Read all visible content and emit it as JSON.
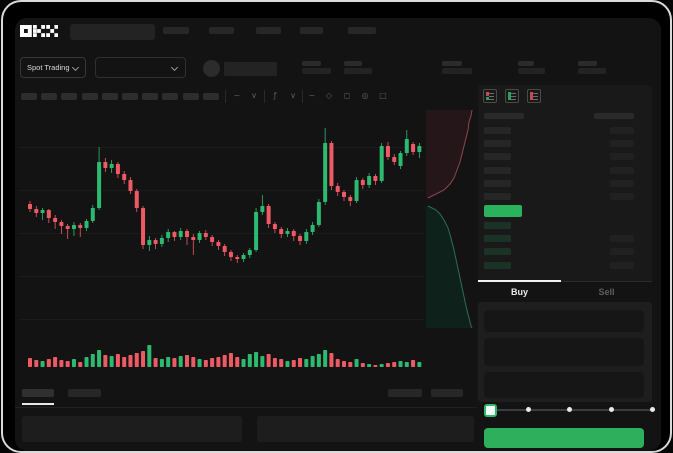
{
  "brand": {
    "logo": "OKX"
  },
  "header": {
    "nav_skeleton_count": 5
  },
  "trade_controls": {
    "market_type": "Spot Trading",
    "stat_skeleton_count": 5
  },
  "chart_toolbar": {
    "skeleton_button_count": 10,
    "icons": [
      {
        "name": "interval-icon",
        "glyph": "~"
      },
      {
        "name": "chevron-down-icon",
        "glyph": "∨"
      },
      {
        "name": "indicators-icon",
        "glyph": "ƒ"
      },
      {
        "name": "chevron-down-icon",
        "glyph": "∨"
      },
      {
        "name": "line-style-icon",
        "glyph": "~"
      },
      {
        "name": "compare-icon",
        "glyph": "◇"
      },
      {
        "name": "screenshot-icon",
        "glyph": "◻"
      },
      {
        "name": "settings-icon",
        "glyph": "◎"
      },
      {
        "name": "fullscreen-icon",
        "glyph": "□"
      }
    ]
  },
  "order_book": {
    "layout_toggles": [
      "book-both-icon",
      "book-bids-icon",
      "book-asks-icon"
    ],
    "ask_row_count": 6,
    "bid_row_count": 4,
    "last_price_highlight": true
  },
  "order_panel": {
    "tabs": [
      {
        "label": "Buy",
        "active": true
      },
      {
        "label": "Sell",
        "active": false
      }
    ],
    "field_count": 3,
    "slider_stop_count": 5,
    "slider_value_index": 0
  },
  "colors": {
    "up": "#2eb970",
    "down": "#ee5a64",
    "last_price_block": "#2ab35c",
    "buy_button": "#2eaf5b",
    "slider_accent": "#2fb671",
    "depth_ask_fill": "#251619",
    "depth_ask_line": "#8f454d",
    "depth_bid_fill": "#0e211a",
    "depth_bid_line": "#2d6e55"
  },
  "chart_data": {
    "type": "candlestick",
    "title": "",
    "xlabel": "",
    "ylabel": "",
    "axis_labels_visible": false,
    "price_units": "relative",
    "candles": [
      [
        66,
        61,
        69,
        58
      ],
      [
        61,
        57,
        64,
        53
      ],
      [
        57,
        60,
        62,
        50
      ],
      [
        60,
        52,
        61,
        47
      ],
      [
        52,
        48,
        55,
        41
      ],
      [
        48,
        44,
        50,
        36
      ],
      [
        44,
        41,
        46,
        31
      ],
      [
        41,
        45,
        48,
        34
      ],
      [
        45,
        42,
        47,
        33
      ],
      [
        42,
        49,
        51,
        39
      ],
      [
        49,
        62,
        65,
        47
      ],
      [
        62,
        108,
        123,
        60
      ],
      [
        108,
        102,
        112,
        98
      ],
      [
        102,
        106,
        110,
        97
      ],
      [
        106,
        96,
        108,
        92
      ],
      [
        96,
        90,
        99,
        86
      ],
      [
        90,
        79,
        93,
        76
      ],
      [
        79,
        62,
        81,
        58
      ],
      [
        62,
        25,
        64,
        21
      ],
      [
        25,
        30,
        34,
        19
      ],
      [
        30,
        26,
        32,
        21
      ],
      [
        26,
        32,
        35,
        23
      ],
      [
        32,
        38,
        41,
        28
      ],
      [
        38,
        33,
        39,
        29
      ],
      [
        33,
        39,
        42,
        30
      ],
      [
        39,
        33,
        41,
        25
      ],
      [
        33,
        30,
        36,
        15
      ],
      [
        30,
        37,
        39,
        27
      ],
      [
        37,
        33,
        40,
        30
      ],
      [
        33,
        28,
        35,
        24
      ],
      [
        28,
        24,
        30,
        20
      ],
      [
        24,
        18,
        26,
        14
      ],
      [
        18,
        13,
        20,
        9
      ],
      [
        13,
        11,
        15,
        7
      ],
      [
        11,
        15,
        17,
        8
      ],
      [
        15,
        20,
        22,
        12
      ],
      [
        20,
        58,
        62,
        18
      ],
      [
        58,
        64,
        75,
        55
      ],
      [
        64,
        46,
        66,
        42
      ],
      [
        46,
        41,
        48,
        37
      ],
      [
        41,
        36,
        43,
        32
      ],
      [
        36,
        39,
        42,
        33
      ],
      [
        39,
        34,
        41,
        29
      ],
      [
        34,
        29,
        36,
        25
      ],
      [
        29,
        38,
        41,
        26
      ],
      [
        38,
        45,
        48,
        35
      ],
      [
        45,
        68,
        71,
        43
      ],
      [
        68,
        127,
        142,
        65
      ],
      [
        127,
        84,
        129,
        80
      ],
      [
        84,
        78,
        87,
        74
      ],
      [
        78,
        73,
        80,
        69
      ],
      [
        73,
        69,
        75,
        64
      ],
      [
        69,
        90,
        93,
        67
      ],
      [
        90,
        85,
        92,
        81
      ],
      [
        85,
        94,
        97,
        82
      ],
      [
        94,
        89,
        96,
        85
      ],
      [
        89,
        124,
        127,
        87
      ],
      [
        124,
        113,
        128,
        110
      ],
      [
        113,
        108,
        116,
        105
      ],
      [
        104,
        117,
        119,
        101
      ],
      [
        117,
        131,
        140,
        114
      ],
      [
        126,
        118,
        128,
        115
      ],
      [
        118,
        124,
        127,
        112
      ]
    ],
    "volumes": [
      9,
      7,
      6,
      8,
      10,
      7,
      6,
      8,
      5,
      10,
      13,
      17,
      12,
      11,
      13,
      10,
      12,
      14,
      16,
      22,
      9,
      8,
      10,
      9,
      11,
      12,
      10,
      8,
      7,
      9,
      10,
      12,
      14,
      10,
      8,
      13,
      15,
      11,
      13,
      9,
      8,
      6,
      7,
      9,
      8,
      11,
      13,
      17,
      14,
      8,
      6,
      5,
      8,
      4,
      3,
      2,
      3,
      4,
      5,
      6,
      5,
      7,
      5
    ],
    "depth_profile": {
      "asks_curve": [
        [
          46,
          0
        ],
        [
          45,
          6
        ],
        [
          43,
          12
        ],
        [
          42,
          20
        ],
        [
          40,
          28
        ],
        [
          38,
          36
        ],
        [
          36,
          44
        ],
        [
          34,
          52
        ],
        [
          31,
          60
        ],
        [
          28,
          68
        ],
        [
          24,
          74
        ],
        [
          18,
          80
        ],
        [
          10,
          84
        ],
        [
          4,
          87
        ],
        [
          2,
          88
        ]
      ],
      "bids_curve": [
        [
          2,
          96
        ],
        [
          6,
          98
        ],
        [
          10,
          100
        ],
        [
          14,
          104
        ],
        [
          18,
          110
        ],
        [
          22,
          118
        ],
        [
          25,
          128
        ],
        [
          28,
          140
        ],
        [
          31,
          154
        ],
        [
          34,
          168
        ],
        [
          37,
          182
        ],
        [
          40,
          196
        ],
        [
          43,
          208
        ],
        [
          45,
          216
        ],
        [
          46,
          218
        ]
      ]
    }
  }
}
